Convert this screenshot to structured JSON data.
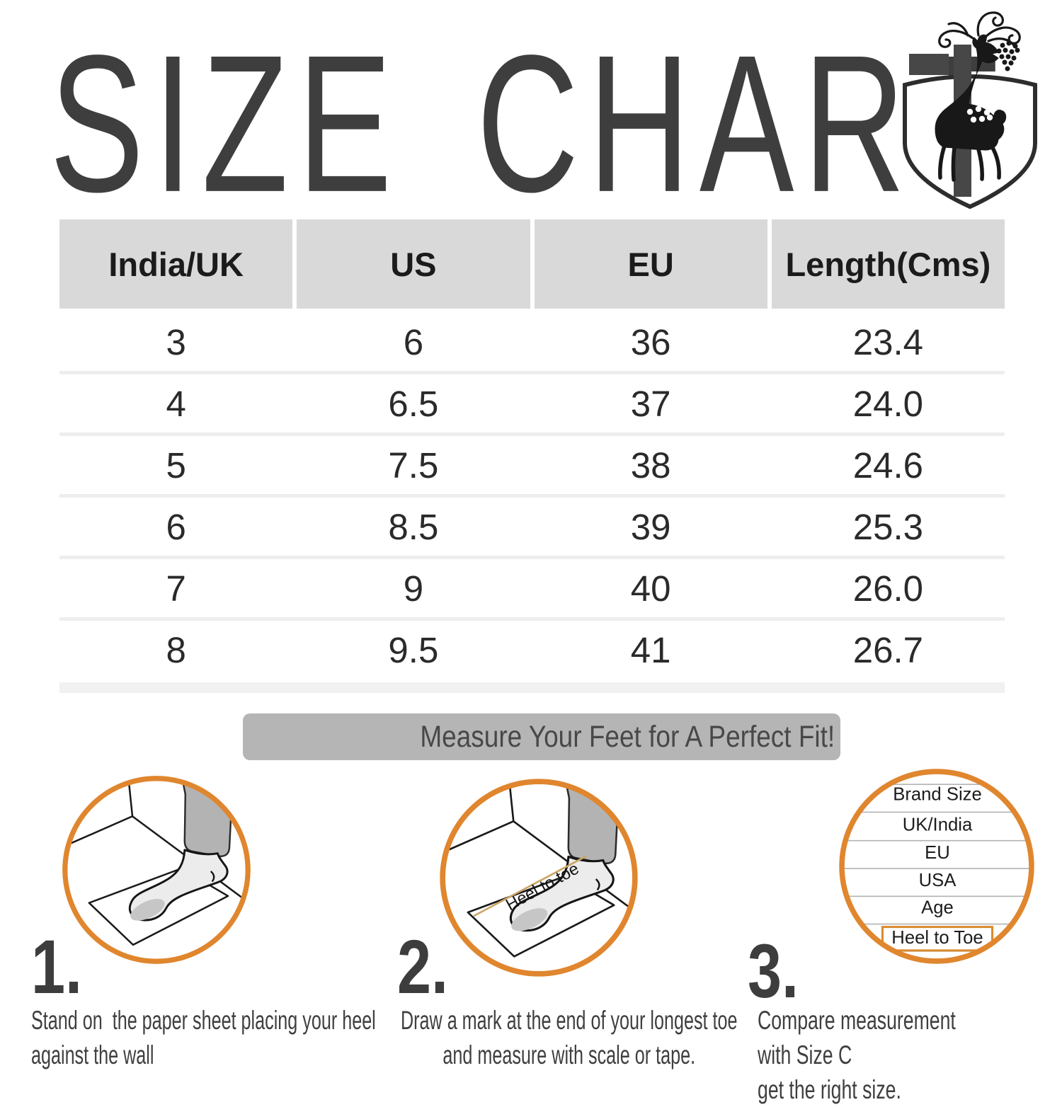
{
  "page": {
    "background": "#ffffff"
  },
  "header": {
    "title": "SIZE CHART",
    "title_color": "#3e3e3e",
    "logo_icon": "deer-shield-logo"
  },
  "size_table": {
    "columns": [
      "India/UK",
      "US",
      "EU",
      "Length(Cms)"
    ],
    "rows": [
      [
        "3",
        "6",
        "36",
        "23.4"
      ],
      [
        "4",
        "6.5",
        "37",
        "24.0"
      ],
      [
        "5",
        "7.5",
        "38",
        "24.6"
      ],
      [
        "6",
        "8.5",
        "39",
        "25.3"
      ],
      [
        "7",
        "9",
        "40",
        "26.0"
      ],
      [
        "8",
        "9.5",
        "41",
        "26.7"
      ]
    ],
    "header_bg": "#d9d9d9"
  },
  "chart_data": {
    "type": "table",
    "title": "SIZE CHART",
    "columns": [
      "India/UK",
      "US",
      "EU",
      "Length(Cms)"
    ],
    "rows": [
      [
        "3",
        "6",
        "36",
        "23.4"
      ],
      [
        "4",
        "6.5",
        "37",
        "24.0"
      ],
      [
        "5",
        "7.5",
        "38",
        "24.6"
      ],
      [
        "6",
        "8.5",
        "39",
        "25.3"
      ],
      [
        "7",
        "9",
        "40",
        "26.0"
      ],
      [
        "8",
        "9.5",
        "41",
        "26.7"
      ]
    ]
  },
  "banner": {
    "text": "Measure Your Feet for A Perfect Fit!",
    "bg": "#b5b5b5",
    "text_color": "#484848"
  },
  "steps": [
    {
      "number": "1.",
      "caption": "Stand on  the paper sheet placing your heel\nagainst the wall",
      "illustration": "foot-on-paper-against-wall-icon"
    },
    {
      "number": "2.",
      "caption": "Draw a mark at the end of your longest toe\nand measure with scale or tape.",
      "diagram_label": "Heel to toe",
      "illustration": "foot-on-paper-heel-to-toe-icon"
    },
    {
      "number": "3.",
      "caption": "Compare measurement with Size C\nget the right size.",
      "list": [
        "Brand Size",
        "UK/India",
        "EU",
        "USA",
        "Age",
        "Heel to Toe"
      ],
      "highlighted_item": "Heel to Toe",
      "illustration": "size-comparison-list-icon"
    }
  ],
  "colors": {
    "accent_orange": "#e0862e",
    "tan_line": "#c9a566",
    "ink": "#1a1a1a",
    "step_text": "#3f3f3f"
  }
}
